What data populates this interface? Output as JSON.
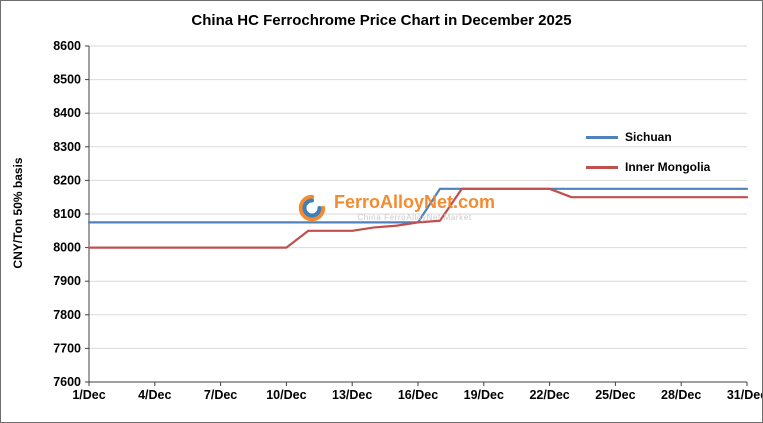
{
  "title": "China HC Ferrochrome Price Chart in December 2025",
  "y_axis_label": "CNY/Ton 50% basis",
  "watermark": {
    "brand": "FerroAlloyNet",
    "tld": ".com",
    "subtext": "China FerroAlloyNet Market"
  },
  "colors": {
    "sichuan_line": "#4f81bd",
    "inner_mongolia_line": "#c0504d",
    "gridline": "#d9d9d9",
    "axis": "#404040",
    "brand_orange": "#f58220",
    "brand_blue": "#2e75b6"
  },
  "chart_data": {
    "type": "line",
    "title": "China HC Ferrochrome Price Chart in December 2025",
    "xlabel": "",
    "ylabel": "CNY/Ton 50% basis",
    "ylim": [
      7600,
      8600
    ],
    "y_tick_step": 100,
    "grid": true,
    "legend_position": "right-inside",
    "x": [
      1,
      2,
      3,
      4,
      5,
      6,
      7,
      8,
      9,
      10,
      11,
      12,
      13,
      14,
      15,
      16,
      17,
      18,
      19,
      20,
      21,
      22,
      23,
      24,
      25,
      26,
      27,
      28,
      29,
      30,
      31
    ],
    "x_ticks": [
      1,
      4,
      7,
      10,
      13,
      16,
      19,
      22,
      25,
      28,
      31
    ],
    "x_tick_labels": [
      "1/Dec",
      "4/Dec",
      "7/Dec",
      "10/Dec",
      "13/Dec",
      "16/Dec",
      "19/Dec",
      "22/Dec",
      "25/Dec",
      "28/Dec",
      "31/Dec"
    ],
    "series": [
      {
        "name": "Sichuan",
        "color": "#4f81bd",
        "values": [
          8075,
          8075,
          8075,
          8075,
          8075,
          8075,
          8075,
          8075,
          8075,
          8075,
          8075,
          8075,
          8075,
          8075,
          8075,
          8075,
          8175,
          8175,
          8175,
          8175,
          8175,
          8175,
          8175,
          8175,
          8175,
          8175,
          8175,
          8175,
          8175,
          8175,
          8175
        ]
      },
      {
        "name": "Inner Mongolia",
        "color": "#c0504d",
        "values": [
          8000,
          8000,
          8000,
          8000,
          8000,
          8000,
          8000,
          8000,
          8000,
          8000,
          8050,
          8050,
          8050,
          8060,
          8065,
          8075,
          8080,
          8175,
          8175,
          8175,
          8175,
          8175,
          8150,
          8150,
          8150,
          8150,
          8150,
          8150,
          8150,
          8150,
          8150
        ]
      }
    ]
  }
}
